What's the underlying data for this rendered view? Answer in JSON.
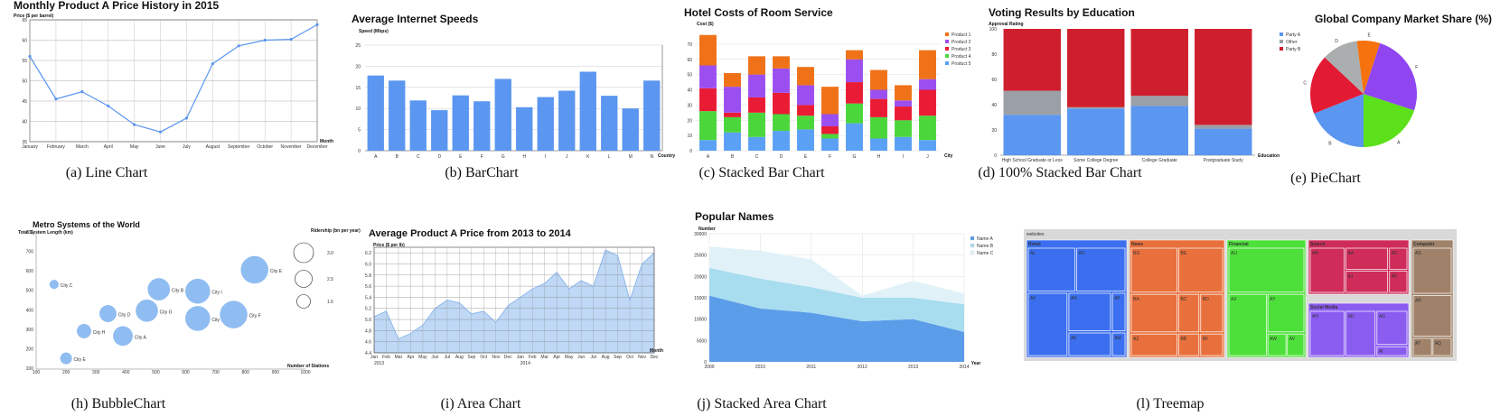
{
  "panels": [
    {
      "id": "line",
      "caption": "(a) Line Chart",
      "chart_data": {
        "type": "line",
        "title": "Monthly Product A Price History in 2015",
        "ylabel": "Price ($ per barrel)",
        "xlabel": "Month",
        "categories": [
          "January",
          "February",
          "March",
          "April",
          "May",
          "June",
          "July",
          "August",
          "September",
          "October",
          "November",
          "December"
        ],
        "values": [
          56,
          45.5,
          47.3,
          43.8,
          39.2,
          37.4,
          40.8,
          54.2,
          58.6,
          60,
          60.2,
          63.8
        ],
        "ylim": [
          35,
          65
        ],
        "yticks": [
          "35",
          "40",
          "45",
          "50",
          "55",
          "60",
          "65"
        ]
      }
    },
    {
      "id": "bar",
      "caption": "(b) BarChart",
      "chart_data": {
        "type": "bar",
        "title": "Average Internet Speeds",
        "ylabel": "Speed (Mbps)",
        "xlabel": "Country",
        "categories": [
          "A",
          "B",
          "C",
          "D",
          "E",
          "F",
          "G",
          "H",
          "I",
          "J",
          "K",
          "L",
          "M",
          "N"
        ],
        "values": [
          17.8,
          16.6,
          11.9,
          9.6,
          13.1,
          11.7,
          17,
          10.3,
          12.7,
          14.2,
          18.7,
          13,
          10,
          16.6
        ],
        "ylim": [
          0,
          25
        ],
        "yticks": [
          "0",
          "5",
          "10",
          "15",
          "20",
          "25"
        ],
        "color": "#5b96f0"
      }
    },
    {
      "id": "stacked",
      "caption": "(c) Stacked Bar Chart",
      "chart_data": {
        "type": "bar",
        "title": "Hotel Costs of Room Service",
        "ylabel": "Cost ($)",
        "xlabel": "City",
        "categories": [
          "A",
          "B",
          "C",
          "D",
          "E",
          "F",
          "G",
          "H",
          "I",
          "J"
        ],
        "series": [
          {
            "name": "Product 5",
            "color": "#5aa0f5",
            "values": [
              7,
              12,
              9,
              13,
              14,
              8,
              18,
              8,
              9,
              7
            ]
          },
          {
            "name": "Product 4",
            "color": "#4bd63c",
            "values": [
              19,
              10,
              16,
              11,
              9,
              3,
              13,
              14,
              11,
              16
            ]
          },
          {
            "name": "Product 3",
            "color": "#ea1b35",
            "values": [
              15,
              3,
              10,
              14,
              7,
              5,
              14,
              12,
              9,
              17
            ]
          },
          {
            "name": "Product 2",
            "color": "#9b4ff0",
            "values": [
              15,
              17,
              15,
              16,
              13,
              8,
              15,
              6,
              4,
              7
            ]
          },
          {
            "name": "Product 1",
            "color": "#f07218",
            "values": [
              20,
              9,
              12,
              8,
              12,
              18,
              6,
              13,
              10,
              19
            ]
          }
        ],
        "ylim": [
          0,
          80
        ],
        "yticks": [
          "0",
          "10",
          "20",
          "30",
          "40",
          "50",
          "60",
          "70"
        ]
      }
    },
    {
      "id": "pct",
      "caption": "(d) 100% Stacked Bar Chart",
      "chart_data": {
        "type": "bar",
        "title": "Voting Results by Education",
        "ylabel": "Approval Rating",
        "xlabel": "Education",
        "categories": [
          "High School Graduate or Less",
          "Some College Degree",
          "College Graduate",
          "Postgraduate Study"
        ],
        "series": [
          {
            "name": "Party A",
            "color": "#5b96f0",
            "values": [
              32,
              37,
              39,
              21
            ]
          },
          {
            "name": "Other",
            "color": "#9aa0a6",
            "values": [
              19,
              1,
              8,
              3
            ]
          },
          {
            "name": "Party B",
            "color": "#cf1f2e",
            "values": [
              49,
              62,
              53,
              76
            ]
          }
        ],
        "ylim": [
          0,
          100
        ],
        "yticks": [
          "0",
          "20",
          "40",
          "60",
          "80",
          "100"
        ]
      }
    },
    {
      "id": "pie",
      "caption": "(e) PieChart",
      "chart_data": {
        "type": "pie",
        "title": "Global Company Market Share (%)",
        "labels": [
          "A",
          "B",
          "C",
          "D",
          "E",
          "F"
        ],
        "values": [
          20,
          19,
          18,
          11,
          7,
          25
        ],
        "colors": [
          "#5ce11a",
          "#5b96f0",
          "#e31a34",
          "#aaaeae",
          "#f5720e",
          "#8f46f0"
        ]
      }
    },
    {
      "id": "bubble",
      "caption": "(h) BubbleChart",
      "chart_data": {
        "type": "scatter",
        "title": "Metro Systems of the World",
        "ylabel": "Total System Length (km)",
        "xlabel": "Number of Stations",
        "xlim": [
          100,
          1000
        ],
        "ylim": [
          100,
          800
        ],
        "xticks": [
          "100",
          "200",
          "300",
          "400",
          "500",
          "600",
          "700",
          "800",
          "900",
          "1000"
        ],
        "yticks": [
          "100",
          "200",
          "300",
          "400",
          "500",
          "600",
          "700",
          "800"
        ],
        "points": [
          {
            "name": "City C",
            "x": 160,
            "y": 535,
            "r": 2
          },
          {
            "name": "City E",
            "x": 200,
            "y": 155,
            "r": 3
          },
          {
            "name": "City H",
            "x": 260,
            "y": 295,
            "r": 4
          },
          {
            "name": "City D",
            "x": 340,
            "y": 385,
            "r": 5
          },
          {
            "name": "City A",
            "x": 390,
            "y": 270,
            "r": 6
          },
          {
            "name": "City G",
            "x": 470,
            "y": 400,
            "r": 7
          },
          {
            "name": "City B",
            "x": 510,
            "y": 510,
            "r": 7
          },
          {
            "name": "City I",
            "x": 640,
            "y": 500,
            "r": 8
          },
          {
            "name": "City C",
            "x": 640,
            "y": 360,
            "r": 8
          },
          {
            "name": "City F",
            "x": 760,
            "y": 380,
            "r": 9
          },
          {
            "name": "City E",
            "x": 830,
            "y": 610,
            "r": 9
          }
        ],
        "size_legend": {
          "title": "Ridership (bn per year)",
          "labels": [
            "3.0",
            "2.5",
            "1.6"
          ]
        }
      }
    },
    {
      "id": "area",
      "caption": "(i) Area Chart",
      "chart_data": {
        "type": "area",
        "title": "Average Product A Price from 2013 to 2014",
        "ylabel": "Price ($ per lb)",
        "xlabel": "Month",
        "categories": [
          "Jan",
          "Feb",
          "Mar",
          "Apr",
          "May",
          "Jun",
          "Jul",
          "Aug",
          "Sep",
          "Oct",
          "Nov",
          "Dec",
          "Jan",
          "Feb",
          "Mar",
          "Apr",
          "May",
          "Jun",
          "Jul",
          "Aug",
          "Sep",
          "Oct",
          "Nov",
          "Dec"
        ],
        "year_labels": [
          "2013",
          "2014"
        ],
        "values": [
          5.05,
          5.15,
          4.65,
          4.75,
          4.9,
          5.2,
          5.35,
          5.3,
          5.1,
          5.15,
          4.95,
          5.25,
          5.4,
          5.55,
          5.65,
          5.85,
          5.55,
          5.7,
          5.6,
          6.25,
          6.15,
          5.35,
          6.0,
          6.2
        ],
        "ylim": [
          4.4,
          6.3
        ],
        "yticks": [
          "4.4",
          "4.6",
          "4.8",
          "5.0",
          "5.2",
          "5.4",
          "5.6",
          "5.8",
          "6.0",
          "6.2"
        ]
      }
    },
    {
      "id": "sarea",
      "caption": "(j) Stacked Area Chart",
      "chart_data": {
        "type": "area",
        "title": "Popular Names",
        "ylabel": "Number",
        "xlabel": "Year",
        "x": [
          "2009",
          "2010",
          "2011",
          "2012",
          "2013",
          "2014"
        ],
        "series": [
          {
            "name": "Name A",
            "color": "#5b9de8",
            "values": [
              15500,
              12500,
              11500,
              9500,
              10000,
              7000
            ]
          },
          {
            "name": "Name B",
            "color": "#a8dcef",
            "values": [
              6500,
              7000,
              6000,
              5500,
              5000,
              6500
            ]
          },
          {
            "name": "Name C",
            "color": "#e0f2f7",
            "values": [
              5000,
              6500,
              6500,
              500,
              4000,
              2500
            ]
          }
        ],
        "ylim": [
          0,
          30000
        ],
        "yticks": [
          "0",
          "5000",
          "10000",
          "15000",
          "20000",
          "25000",
          "30000"
        ]
      }
    },
    {
      "id": "treemap",
      "caption": "(l) Treemap",
      "chart_data": {
        "type": "treemap",
        "root": "websites",
        "groups": [
          {
            "name": "Retail",
            "color": "#3b6ff0",
            "items": [
              "AL",
              "AO",
              "AF",
              "AN",
              "AP",
              "AE",
              "AM"
            ]
          },
          {
            "name": "News",
            "color": "#e8703c",
            "items": [
              "BG",
              "BE",
              "BA",
              "BC",
              "BD",
              "AZ",
              "BB",
              "BF"
            ]
          },
          {
            "name": "Financial",
            "color": "#4ee03a",
            "items": [
              "AU",
              "AX",
              "AY",
              "AW",
              "AV"
            ]
          },
          {
            "name": "Search",
            "color": "#cf2c5a",
            "items": [
              "AB",
              "AA",
              "AC",
              "AJ",
              "AK"
            ]
          },
          {
            "name": "Social Media",
            "color": "#8b5cf0",
            "items": [
              "AH",
              "AD",
              "AG",
              "AI"
            ]
          },
          {
            "name": "Computer",
            "color": "#a0826a",
            "items": [
              "AS",
              "AR",
              "AT",
              "AQ"
            ]
          }
        ]
      }
    }
  ]
}
